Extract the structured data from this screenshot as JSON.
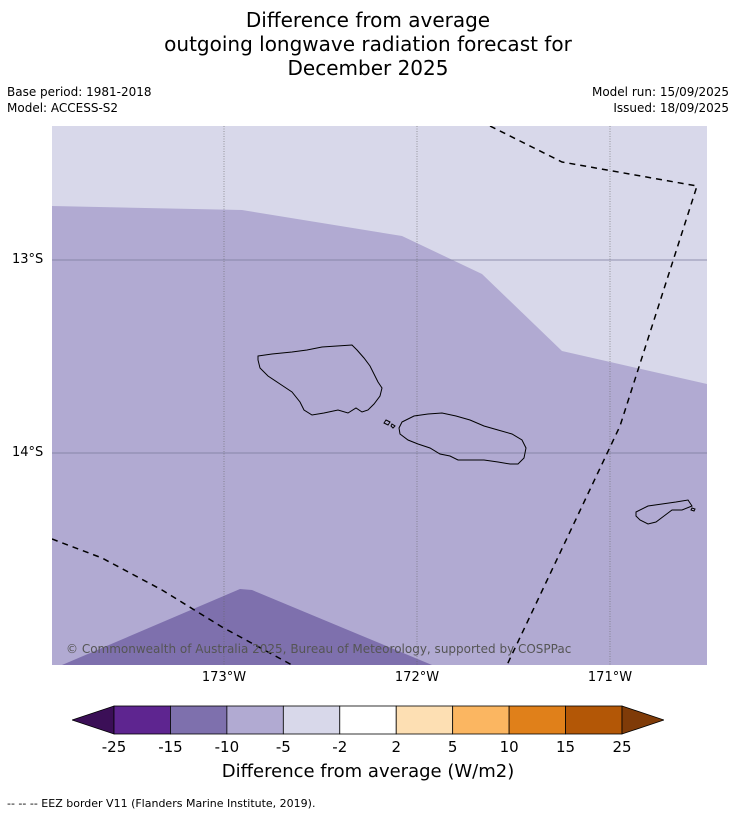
{
  "title": {
    "line1": "Difference from average",
    "line2": "outgoing longwave radiation forecast for",
    "line3": "December 2025"
  },
  "meta": {
    "base_period": "Base period: 1981-2018",
    "model": "Model: ACCESS-S2",
    "model_run": "Model run: 15/09/2025",
    "issued": "Issued: 18/09/2025"
  },
  "map": {
    "lat_labels": [
      "13°S",
      "14°S"
    ],
    "lon_labels": [
      "173°W",
      "172°W",
      "171°W"
    ],
    "copyright": "© Commonwealth of Australia 2025, Bureau of Meteorology, supported by COSPPac"
  },
  "colorbar": {
    "ticks": [
      "-25",
      "-15",
      "-10",
      "-5",
      "-2",
      "2",
      "5",
      "10",
      "15",
      "25"
    ],
    "colors": [
      "#3b0f57",
      "#5e2590",
      "#7e70ad",
      "#b1aad2",
      "#d8d8ea",
      "#ffffff",
      "#fddfb3",
      "#fbb661",
      "#e0801a",
      "#b35706",
      "#7f3b08"
    ],
    "label": "Difference from average (W/m2)"
  },
  "footer": "--  --  -- EEZ border V11 (Flanders Marine Institute, 2019)."
}
